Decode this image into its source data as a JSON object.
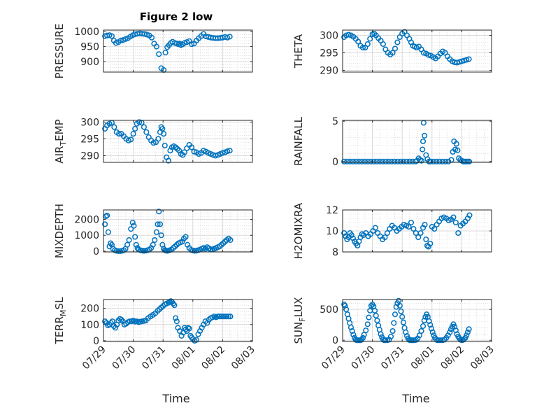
{
  "chart_data": {
    "title": "Figure 2 low",
    "xlabel": "Time",
    "x_ticks": [
      "07/29",
      "07/30",
      "07/31",
      "08/01",
      "08/02",
      "08/03"
    ],
    "x_range_days": [
      0,
      5
    ],
    "marker_color": "#0072BD",
    "grid": true,
    "panels": [
      {
        "id": "pressure",
        "type": "scatter",
        "ylabel_main": "PRESSURE",
        "ylabel_sub": "",
        "ylim": [
          865,
          1005
        ],
        "yticks": [
          900,
          950,
          1000
        ],
        "x": [
          0.05,
          0.12,
          0.2,
          0.28,
          0.35,
          0.42,
          0.5,
          0.58,
          0.66,
          0.74,
          0.82,
          0.9,
          0.98,
          1.06,
          1.14,
          1.22,
          1.3,
          1.38,
          1.46,
          1.54,
          1.62,
          1.7,
          1.78,
          1.86,
          1.94,
          2.02,
          2.08,
          2.14,
          2.2,
          2.26,
          2.32,
          2.4,
          2.46,
          2.52,
          2.56,
          2.6,
          2.65,
          2.72,
          2.8,
          2.88,
          2.96,
          3.04,
          3.12,
          3.2,
          3.28,
          3.36,
          3.44,
          3.52,
          3.6,
          3.68,
          3.76,
          3.84,
          3.92,
          4.0,
          4.08,
          4.16,
          4.24
        ],
        "y": [
          985,
          987,
          988,
          985,
          970,
          962,
          965,
          970,
          972,
          975,
          978,
          983,
          988,
          991,
          993,
          994,
          993,
          992,
          990,
          987,
          980,
          960,
          950,
          925,
          878,
          872,
          930,
          948,
          955,
          962,
          966,
          962,
          960,
          958,
          960,
          955,
          957,
          962,
          965,
          968,
          958,
          960,
          970,
          978,
          985,
          992,
          984,
          982,
          980,
          979,
          978,
          978,
          979,
          980,
          982,
          980,
          983
        ]
      },
      {
        "id": "theta",
        "type": "scatter",
        "ylabel_main": "THETA",
        "ylabel_sub": "",
        "ylim": [
          289.5,
          301.5
        ],
        "yticks": [
          290,
          295,
          300
        ],
        "x": [
          0.05,
          0.12,
          0.2,
          0.28,
          0.36,
          0.44,
          0.52,
          0.6,
          0.68,
          0.76,
          0.84,
          0.92,
          1.0,
          1.06,
          1.12,
          1.2,
          1.28,
          1.36,
          1.44,
          1.52,
          1.6,
          1.68,
          1.76,
          1.84,
          1.92,
          2.0,
          2.08,
          2.16,
          2.24,
          2.3,
          2.36,
          2.42,
          2.48,
          2.56,
          2.64,
          2.72,
          2.8,
          2.88,
          2.96,
          3.04,
          3.12,
          3.2,
          3.28,
          3.36,
          3.44,
          3.52,
          3.6,
          3.68,
          3.76,
          3.84,
          3.92,
          4.0,
          4.08,
          4.16,
          4.24
        ],
        "y": [
          299.5,
          300,
          300.2,
          300,
          299.6,
          299,
          298.2,
          297,
          296.5,
          296.5,
          297.5,
          299,
          300.3,
          300.5,
          300,
          299.2,
          298.5,
          297.5,
          296,
          295,
          294.5,
          295,
          296.2,
          298,
          299.5,
          300.5,
          301,
          300,
          299,
          298,
          297,
          296.8,
          296.5,
          296.8,
          296,
          295,
          294.8,
          294.4,
          294.2,
          293.8,
          293.4,
          294,
          294.8,
          295.4,
          295,
          294,
          293.2,
          292.6,
          292.3,
          292.2,
          292.4,
          292.6,
          292.8,
          293,
          293.2
        ]
      },
      {
        "id": "air_temp",
        "type": "scatter",
        "ylabel_main": "AIR",
        "ylabel_sub": "T",
        "ylabel_tail": "EMP",
        "ylim": [
          288,
          300.5
        ],
        "yticks": [
          290,
          295,
          300
        ],
        "x": [
          0.05,
          0.12,
          0.2,
          0.28,
          0.36,
          0.44,
          0.52,
          0.6,
          0.68,
          0.76,
          0.84,
          0.92,
          1.0,
          1.06,
          1.12,
          1.2,
          1.28,
          1.36,
          1.44,
          1.52,
          1.6,
          1.68,
          1.76,
          1.84,
          1.9,
          1.94,
          1.98,
          2.02,
          2.06,
          2.12,
          2.18,
          2.24,
          2.3,
          2.36,
          2.42,
          2.48,
          2.54,
          2.6,
          2.66,
          2.72,
          2.8,
          2.88,
          2.96,
          3.04,
          3.12,
          3.2,
          3.28,
          3.36,
          3.44,
          3.52,
          3.6,
          3.68,
          3.76,
          3.84,
          3.92,
          4.0,
          4.08,
          4.16,
          4.24
        ],
        "y": [
          298,
          299,
          299.5,
          299.8,
          298.5,
          297,
          296.5,
          296.5,
          295.8,
          295,
          294.5,
          294.8,
          296.5,
          298,
          299.5,
          300,
          299.8,
          298.5,
          297,
          295.5,
          294.5,
          293.8,
          294,
          295,
          297,
          298.5,
          298,
          296.5,
          293,
          289.5,
          288.5,
          291.5,
          292.5,
          292.8,
          292.5,
          292,
          291.5,
          290.5,
          290.2,
          291,
          292.2,
          293.2,
          292.5,
          291.2,
          291,
          290.5,
          290.8,
          291.5,
          291.2,
          290.8,
          290.5,
          290.2,
          290,
          290.2,
          290.5,
          290.8,
          291,
          291.3,
          291.5
        ]
      },
      {
        "id": "rainfall",
        "type": "scatter",
        "ylabel_main": "RAINFALL",
        "ylabel_sub": "",
        "ylim": [
          -0.1,
          5.1
        ],
        "yticks": [
          0,
          5
        ],
        "x": [
          0.05,
          0.15,
          0.25,
          0.35,
          0.45,
          0.55,
          0.65,
          0.75,
          0.85,
          0.95,
          1.05,
          1.15,
          1.25,
          1.35,
          1.45,
          1.55,
          1.65,
          1.75,
          1.85,
          1.95,
          2.05,
          2.15,
          2.25,
          2.35,
          2.45,
          2.5,
          2.55,
          2.6,
          2.65,
          2.68,
          2.7,
          2.72,
          2.75,
          2.8,
          2.85,
          2.9,
          2.95,
          3.05,
          3.15,
          3.25,
          3.35,
          3.45,
          3.55,
          3.65,
          3.7,
          3.74,
          3.78,
          3.82,
          3.86,
          3.9,
          3.95,
          4.0,
          4.05,
          4.1,
          4.15,
          4.2,
          4.25
        ],
        "y": [
          0,
          0,
          0,
          0,
          0,
          0,
          0,
          0,
          0,
          0,
          0,
          0,
          0,
          0,
          0,
          0,
          0,
          0,
          0,
          0,
          0,
          0,
          0,
          0,
          0,
          0.1,
          0.4,
          0.2,
          0.1,
          1.5,
          2.5,
          4.8,
          3.2,
          0.8,
          0.3,
          0,
          0,
          0,
          0,
          0,
          0,
          0,
          0,
          0.2,
          1.2,
          2.5,
          1.5,
          2.2,
          1.4,
          0.4,
          0.2,
          0.1,
          0,
          0,
          0,
          0,
          0
        ]
      },
      {
        "id": "mixdepth",
        "type": "scatter",
        "ylabel_main": "MIXDEPTH",
        "ylabel_sub": "",
        "ylim": [
          -50,
          2600
        ],
        "yticks": [
          0,
          1000,
          2000
        ],
        "x": [
          0.05,
          0.08,
          0.12,
          0.16,
          0.2,
          0.24,
          0.28,
          0.32,
          0.38,
          0.44,
          0.5,
          0.56,
          0.62,
          0.68,
          0.74,
          0.8,
          0.86,
          0.92,
          0.98,
          1.02,
          1.06,
          1.1,
          1.14,
          1.18,
          1.24,
          1.3,
          1.36,
          1.42,
          1.48,
          1.54,
          1.6,
          1.66,
          1.72,
          1.78,
          1.82,
          1.86,
          1.9,
          1.94,
          1.98,
          2.02,
          2.06,
          2.1,
          2.14,
          2.18,
          2.22,
          2.28,
          2.34,
          2.4,
          2.46,
          2.52,
          2.58,
          2.64,
          2.7,
          2.76,
          2.82,
          2.88,
          2.94,
          3.0,
          3.06,
          3.12,
          3.18,
          3.24,
          3.3,
          3.36,
          3.42,
          3.48,
          3.54,
          3.6,
          3.66,
          3.72,
          3.78,
          3.84,
          3.9,
          3.96,
          4.02,
          4.08,
          4.14,
          4.2,
          4.26
        ],
        "y": [
          1700,
          2200,
          2250,
          1200,
          300,
          500,
          400,
          150,
          60,
          20,
          0,
          0,
          20,
          60,
          150,
          400,
          700,
          1400,
          1800,
          1600,
          900,
          400,
          200,
          100,
          60,
          30,
          20,
          30,
          60,
          100,
          200,
          400,
          700,
          1200,
          1700,
          2500,
          1700,
          1000,
          400,
          150,
          60,
          30,
          20,
          30,
          60,
          100,
          200,
          300,
          400,
          500,
          550,
          600,
          800,
          900,
          400,
          200,
          80,
          40,
          20,
          30,
          60,
          100,
          150,
          200,
          150,
          250,
          180,
          100,
          120,
          150,
          200,
          250,
          300,
          400,
          500,
          600,
          700,
          800,
          700
        ]
      },
      {
        "id": "h2omixra",
        "type": "scatter",
        "ylabel_main": "H2OMIXRA",
        "ylabel_sub": "",
        "ylim": [
          8,
          12
        ],
        "yticks": [
          8,
          10,
          12
        ],
        "x": [
          0.05,
          0.1,
          0.15,
          0.2,
          0.25,
          0.3,
          0.35,
          0.4,
          0.45,
          0.5,
          0.55,
          0.6,
          0.65,
          0.7,
          0.78,
          0.86,
          0.94,
          1.02,
          1.1,
          1.18,
          1.26,
          1.34,
          1.42,
          1.5,
          1.58,
          1.66,
          1.74,
          1.82,
          1.9,
          1.98,
          2.06,
          2.14,
          2.22,
          2.3,
          2.38,
          2.46,
          2.54,
          2.62,
          2.7,
          2.76,
          2.8,
          2.84,
          2.88,
          2.94,
          3.0,
          3.08,
          3.16,
          3.24,
          3.32,
          3.4,
          3.48,
          3.56,
          3.64,
          3.72,
          3.8,
          3.88,
          3.96,
          4.04,
          4.12,
          4.2,
          4.26
        ],
        "y": [
          9.8,
          9.5,
          9.2,
          9.4,
          9.8,
          9.6,
          9.3,
          9.0,
          8.8,
          8.6,
          9.0,
          9.4,
          9.7,
          9.6,
          9.8,
          9.5,
          9.7,
          10.0,
          10.3,
          9.8,
          9.5,
          9.2,
          9.4,
          9.8,
          10.2,
          10.5,
          10.3,
          10.0,
          10.2,
          10.4,
          10.6,
          10.5,
          10.4,
          10.8,
          10.2,
          9.8,
          9.4,
          9.8,
          10.3,
          10.6,
          9.2,
          8.6,
          8.5,
          8.8,
          10.4,
          10.2,
          10.6,
          10.9,
          11.2,
          11.3,
          11.2,
          11.0,
          11.1,
          11.3,
          10.8,
          9.8,
          10.5,
          10.7,
          10.9,
          11.2,
          11.5
        ]
      },
      {
        "id": "terr_msl",
        "type": "scatter",
        "ylabel_main": "TERR",
        "ylabel_sub": "M",
        "ylabel_tail": "SL",
        "ylim": [
          -5,
          255
        ],
        "yticks": [
          0,
          100,
          200
        ],
        "x": [
          0.05,
          0.1,
          0.15,
          0.2,
          0.25,
          0.3,
          0.35,
          0.4,
          0.45,
          0.5,
          0.55,
          0.6,
          0.65,
          0.7,
          0.76,
          0.82,
          0.88,
          0.94,
          1.0,
          1.06,
          1.12,
          1.18,
          1.24,
          1.3,
          1.36,
          1.42,
          1.5,
          1.58,
          1.66,
          1.74,
          1.82,
          1.88,
          1.94,
          2.0,
          2.06,
          2.12,
          2.18,
          2.22,
          2.26,
          2.3,
          2.34,
          2.38,
          2.42,
          2.46,
          2.5,
          2.56,
          2.62,
          2.68,
          2.72,
          2.76,
          2.8,
          2.84,
          2.88,
          2.92,
          2.96,
          3.0,
          3.06,
          3.12,
          3.18,
          3.24,
          3.3,
          3.36,
          3.42,
          3.48,
          3.54,
          3.6,
          3.66,
          3.72,
          3.78,
          3.84,
          3.9,
          3.96,
          4.02,
          4.08,
          4.14,
          4.2,
          4.26
        ],
        "y": [
          120,
          110,
          95,
          100,
          110,
          120,
          90,
          80,
          100,
          125,
          135,
          130,
          120,
          100,
          105,
          115,
          120,
          120,
          125,
          118,
          120,
          115,
          118,
          120,
          122,
          125,
          140,
          150,
          160,
          170,
          185,
          195,
          205,
          215,
          225,
          230,
          235,
          240,
          245,
          240,
          230,
          220,
          140,
          120,
          80,
          60,
          30,
          50,
          80,
          70,
          60,
          80,
          75,
          30,
          20,
          10,
          0,
          5,
          40,
          60,
          80,
          100,
          120,
          110,
          130,
          140,
          145,
          150,
          145,
          150,
          150,
          150,
          150,
          150,
          150,
          150,
          150
        ]
      },
      {
        "id": "sun_flux",
        "type": "scatter",
        "ylabel_main": "SUN",
        "ylabel_sub": "F",
        "ylabel_tail": "LUX",
        "ylim": [
          -20,
          660
        ],
        "yticks": [
          0,
          500
        ],
        "x": [
          0.05,
          0.08,
          0.12,
          0.16,
          0.2,
          0.24,
          0.28,
          0.32,
          0.36,
          0.4,
          0.44,
          0.48,
          0.52,
          0.56,
          0.6,
          0.64,
          0.68,
          0.72,
          0.78,
          0.84,
          0.88,
          0.92,
          0.96,
          1.0,
          1.04,
          1.08,
          1.12,
          1.16,
          1.2,
          1.24,
          1.28,
          1.32,
          1.36,
          1.4,
          1.44,
          1.5,
          1.56,
          1.62,
          1.68,
          1.72,
          1.76,
          1.8,
          1.84,
          1.88,
          1.92,
          1.96,
          2.0,
          2.04,
          2.08,
          2.12,
          2.16,
          2.2,
          2.24,
          2.28,
          2.32,
          2.36,
          2.4,
          2.46,
          2.52,
          2.58,
          2.64,
          2.7,
          2.74,
          2.78,
          2.82,
          2.86,
          2.9,
          2.94,
          2.98,
          3.02,
          3.06,
          3.1,
          3.14,
          3.18,
          3.24,
          3.3,
          3.36,
          3.42,
          3.48,
          3.54,
          3.6,
          3.64,
          3.68,
          3.72,
          3.76,
          3.8,
          3.84,
          3.88,
          3.92,
          3.96,
          4.0,
          4.04,
          4.08,
          4.12,
          4.16,
          4.2,
          4.24
        ],
        "y": [
          580,
          560,
          500,
          420,
          350,
          280,
          210,
          150,
          90,
          40,
          10,
          0,
          0,
          0,
          0,
          10,
          40,
          90,
          160,
          260,
          370,
          480,
          560,
          580,
          550,
          480,
          400,
          320,
          240,
          170,
          100,
          50,
          15,
          0,
          0,
          0,
          10,
          60,
          150,
          280,
          420,
          540,
          600,
          640,
          560,
          470,
          380,
          290,
          200,
          130,
          70,
          30,
          5,
          0,
          0,
          0,
          0,
          5,
          30,
          80,
          150,
          230,
          320,
          380,
          420,
          380,
          310,
          250,
          190,
          130,
          80,
          40,
          15,
          0,
          0,
          0,
          0,
          10,
          40,
          80,
          130,
          180,
          220,
          260,
          220,
          160,
          100,
          60,
          30,
          10,
          0,
          5,
          20,
          40,
          80,
          130,
          180
        ]
      }
    ]
  }
}
